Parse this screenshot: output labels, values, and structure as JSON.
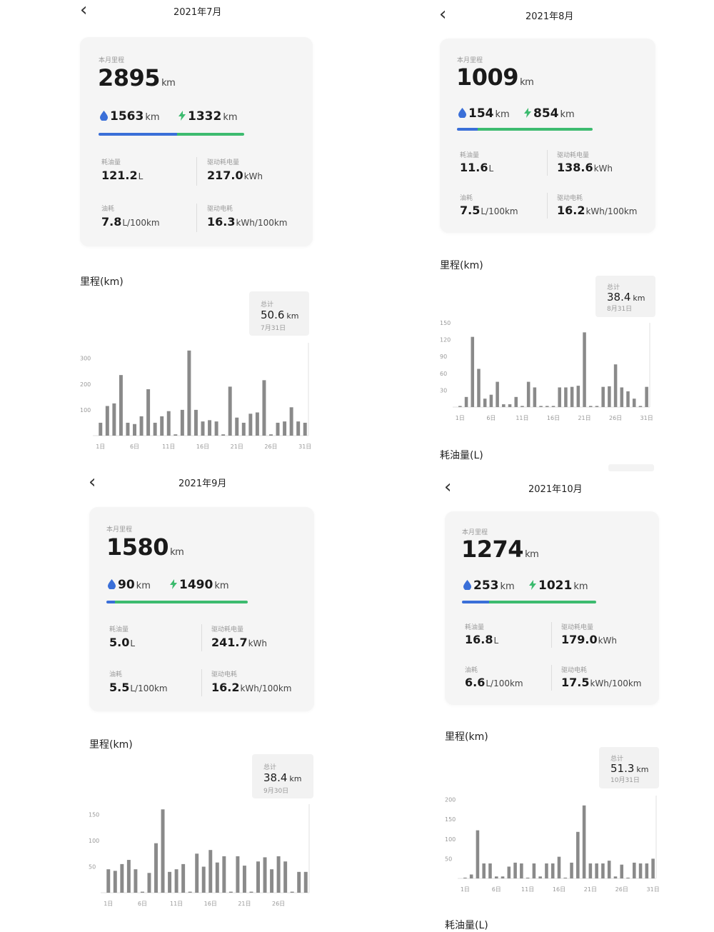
{
  "colors": {
    "fuel": "#3a6fd8",
    "electric": "#3dbb6f",
    "bar": "#8a8a8a",
    "card": "#f5f5f5"
  },
  "icons": {
    "back": "chevron-left-icon",
    "fuel": "water-drop-icon",
    "electric": "lightning-bolt-icon"
  },
  "panels": [
    {
      "back_glyph": "‹",
      "title": "2021年7月",
      "card": {
        "caption": "本月里程",
        "total_value": "2895",
        "total_unit": "km",
        "fuel_value": "1563",
        "fuel_unit": "km",
        "electric_value": "1332",
        "electric_unit": "km",
        "fuel_share": 0.54,
        "fuel_used_label": "耗油量",
        "fuel_used_value": "121.2",
        "fuel_used_unit": "L",
        "electric_used_label": "驱动耗电量",
        "electric_used_value": "217.0",
        "electric_used_unit": "kWh",
        "fuel_rate_label": "油耗",
        "fuel_rate_value": "7.8",
        "fuel_rate_unit": "L/100km",
        "electric_rate_label": "驱动电耗",
        "electric_rate_value": "16.3",
        "electric_rate_unit": "kWh/100km"
      },
      "section_title": "里程(km)",
      "tooltip": {
        "label": "总计",
        "value": "50.6",
        "unit": "km",
        "date": "7月31日"
      },
      "chart_data": {
        "type": "bar",
        "x": [
          "1日",
          "2日",
          "3日",
          "4日",
          "5日",
          "6日",
          "7日",
          "8日",
          "9日",
          "10日",
          "11日",
          "12日",
          "13日",
          "14日",
          "15日",
          "16日",
          "17日",
          "18日",
          "19日",
          "20日",
          "21日",
          "22日",
          "23日",
          "24日",
          "25日",
          "26日",
          "27日",
          "28日",
          "29日",
          "30日",
          "31日"
        ],
        "x_ticks": [
          "1日",
          "6日",
          "11日",
          "16日",
          "21日",
          "26日",
          "31日"
        ],
        "y_ticks": [
          100,
          200,
          300
        ],
        "ylim": [
          0,
          360
        ],
        "values": [
          50,
          115,
          125,
          235,
          50,
          45,
          75,
          180,
          50,
          75,
          95,
          5,
          100,
          330,
          100,
          55,
          60,
          55,
          5,
          190,
          70,
          50,
          85,
          90,
          215,
          5,
          50,
          55,
          110,
          55,
          50
        ]
      }
    },
    {
      "back_glyph": "‹",
      "title": "2021年8月",
      "card": {
        "caption": "本月里程",
        "total_value": "1009",
        "total_unit": "km",
        "fuel_value": "154",
        "fuel_unit": "km",
        "electric_value": "854",
        "electric_unit": "km",
        "fuel_share": 0.15,
        "fuel_used_label": "耗油量",
        "fuel_used_value": "11.6",
        "fuel_used_unit": "L",
        "electric_used_label": "驱动耗电量",
        "electric_used_value": "138.6",
        "electric_used_unit": "kWh",
        "fuel_rate_label": "油耗",
        "fuel_rate_value": "7.5",
        "fuel_rate_unit": "L/100km",
        "electric_rate_label": "驱动电耗",
        "electric_rate_value": "16.2",
        "electric_rate_unit": "kWh/100km"
      },
      "section_title": "里程(km)",
      "tooltip": {
        "label": "总计",
        "value": "38.4",
        "unit": "km",
        "date": "8月31日"
      },
      "next_section_title": "耗油量(L)",
      "chart_data": {
        "type": "bar",
        "x": [
          "1日",
          "2日",
          "3日",
          "4日",
          "5日",
          "6日",
          "7日",
          "8日",
          "9日",
          "10日",
          "11日",
          "12日",
          "13日",
          "14日",
          "15日",
          "16日",
          "17日",
          "18日",
          "19日",
          "20日",
          "21日",
          "22日",
          "23日",
          "24日",
          "25日",
          "26日",
          "27日",
          "28日",
          "29日",
          "30日",
          "31日"
        ],
        "x_ticks": [
          "1日",
          "6日",
          "11日",
          "16日",
          "21日",
          "26日",
          "31日"
        ],
        "y_ticks": [
          30,
          60,
          90,
          120,
          150
        ],
        "ylim": [
          0,
          150
        ],
        "values": [
          2,
          18,
          125,
          68,
          15,
          22,
          45,
          5,
          5,
          18,
          2,
          45,
          35,
          2,
          2,
          2,
          35,
          35,
          36,
          38,
          133,
          2,
          2,
          36,
          37,
          76,
          35,
          28,
          15,
          2,
          36
        ]
      }
    },
    {
      "back_glyph": "‹",
      "title": "2021年9月",
      "card": {
        "caption": "本月里程",
        "total_value": "1580",
        "total_unit": "km",
        "fuel_value": "90",
        "fuel_unit": "km",
        "electric_value": "1490",
        "electric_unit": "km",
        "fuel_share": 0.06,
        "fuel_used_label": "耗油量",
        "fuel_used_value": "5.0",
        "fuel_used_unit": "L",
        "electric_used_label": "驱动耗电量",
        "electric_used_value": "241.7",
        "electric_used_unit": "kWh",
        "fuel_rate_label": "油耗",
        "fuel_rate_value": "5.5",
        "fuel_rate_unit": "L/100km",
        "electric_rate_label": "驱动电耗",
        "electric_rate_value": "16.2",
        "electric_rate_unit": "kWh/100km"
      },
      "section_title": "里程(km)",
      "tooltip": {
        "label": "总计",
        "value": "38.4",
        "unit": "km",
        "date": "9月30日"
      },
      "chart_data": {
        "type": "bar",
        "x": [
          "1日",
          "2日",
          "3日",
          "4日",
          "5日",
          "6日",
          "7日",
          "8日",
          "9日",
          "10日",
          "11日",
          "12日",
          "13日",
          "14日",
          "15日",
          "16日",
          "17日",
          "18日",
          "19日",
          "20日",
          "21日",
          "22日",
          "23日",
          "24日",
          "25日",
          "26日",
          "27日",
          "28日",
          "29日",
          "30日"
        ],
        "x_ticks": [
          "1日",
          "6日",
          "11日",
          "16日",
          "21日",
          "26日"
        ],
        "y_ticks": [
          50,
          100,
          150
        ],
        "ylim": [
          0,
          170
        ],
        "values": [
          45,
          42,
          55,
          63,
          45,
          2,
          38,
          95,
          160,
          40,
          45,
          55,
          2,
          75,
          50,
          82,
          58,
          70,
          2,
          70,
          52,
          2,
          60,
          68,
          45,
          70,
          60,
          2,
          40,
          40
        ]
      }
    },
    {
      "back_glyph": "‹",
      "title": "2021年10月",
      "card": {
        "caption": "本月里程",
        "total_value": "1274",
        "total_unit": "km",
        "fuel_value": "253",
        "fuel_unit": "km",
        "electric_value": "1021",
        "electric_unit": "km",
        "fuel_share": 0.2,
        "fuel_used_label": "耗油量",
        "fuel_used_value": "16.8",
        "fuel_used_unit": "L",
        "electric_used_label": "驱动耗电量",
        "electric_used_value": "179.0",
        "electric_used_unit": "kWh",
        "fuel_rate_label": "油耗",
        "fuel_rate_value": "6.6",
        "fuel_rate_unit": "L/100km",
        "electric_rate_label": "驱动电耗",
        "electric_rate_value": "17.5",
        "electric_rate_unit": "kWh/100km"
      },
      "section_title": "里程(km)",
      "tooltip": {
        "label": "总计",
        "value": "51.3",
        "unit": "km",
        "date": "10月31日"
      },
      "next_section_title": "耗油量(L)",
      "chart_data": {
        "type": "bar",
        "x": [
          "1日",
          "2日",
          "3日",
          "4日",
          "5日",
          "6日",
          "7日",
          "8日",
          "9日",
          "10日",
          "11日",
          "12日",
          "13日",
          "14日",
          "15日",
          "16日",
          "17日",
          "18日",
          "19日",
          "20日",
          "21日",
          "22日",
          "23日",
          "24日",
          "25日",
          "26日",
          "27日",
          "28日",
          "29日",
          "30日",
          "31日"
        ],
        "x_ticks": [
          "1日",
          "6日",
          "11日",
          "16日",
          "21日",
          "26日",
          "31日"
        ],
        "y_ticks": [
          50,
          100,
          150,
          200
        ],
        "ylim": [
          0,
          210
        ],
        "values": [
          2,
          10,
          122,
          38,
          38,
          5,
          5,
          30,
          40,
          38,
          2,
          38,
          5,
          38,
          38,
          55,
          2,
          40,
          118,
          185,
          38,
          38,
          38,
          45,
          5,
          35,
          2,
          40,
          38,
          38,
          50
        ]
      }
    }
  ]
}
